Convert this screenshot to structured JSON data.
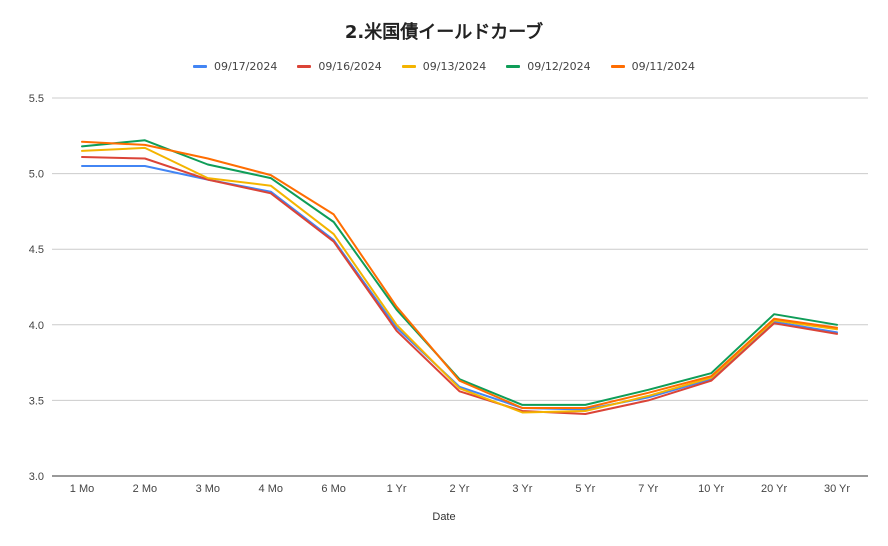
{
  "chart_data": {
    "type": "line",
    "title": "2.米国債イールドカーブ",
    "xlabel": "Date",
    "ylabel": "",
    "ylim": [
      3.0,
      5.5
    ],
    "yticks": [
      "3.0",
      "3.5",
      "4.0",
      "4.5",
      "5.0",
      "5.5"
    ],
    "grid": true,
    "legend_position": "top",
    "categories": [
      "1 Mo",
      "2 Mo",
      "3 Mo",
      "4 Mo",
      "6 Mo",
      "1 Yr",
      "2 Yr",
      "3 Yr",
      "5 Yr",
      "7 Yr",
      "10 Yr",
      "20 Yr",
      "30 Yr"
    ],
    "series": [
      {
        "name": "09/17/2024",
        "color": "#4285f4",
        "values": [
          5.05,
          5.05,
          4.96,
          4.88,
          4.56,
          3.98,
          3.59,
          3.45,
          3.44,
          3.52,
          3.64,
          4.02,
          3.95
        ]
      },
      {
        "name": "09/16/2024",
        "color": "#db4437",
        "values": [
          5.11,
          5.1,
          4.96,
          4.87,
          4.55,
          3.96,
          3.56,
          3.43,
          3.41,
          3.5,
          3.63,
          4.01,
          3.94
        ]
      },
      {
        "name": "09/13/2024",
        "color": "#f4b400",
        "values": [
          5.15,
          5.17,
          4.97,
          4.92,
          4.6,
          4.0,
          3.58,
          3.42,
          3.43,
          3.53,
          3.65,
          4.03,
          3.97
        ]
      },
      {
        "name": "09/12/2024",
        "color": "#0f9d58",
        "values": [
          5.18,
          5.22,
          5.06,
          4.97,
          4.68,
          4.1,
          3.64,
          3.47,
          3.47,
          3.57,
          3.68,
          4.07,
          4.0
        ]
      },
      {
        "name": "09/11/2024",
        "color": "#ff6d01",
        "values": [
          5.21,
          5.19,
          5.1,
          4.99,
          4.73,
          4.12,
          3.63,
          3.45,
          3.45,
          3.55,
          3.66,
          4.04,
          3.98
        ]
      }
    ]
  }
}
